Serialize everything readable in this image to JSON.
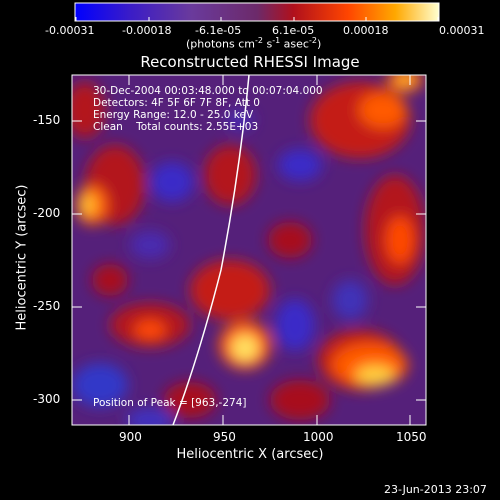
{
  "colorbar": {
    "tick_labels": [
      "-0.00031",
      "-0.00018",
      "-6.1e-05",
      "6.1e-05",
      "0.00018",
      "0.00031"
    ],
    "units_label": "(photons cm",
    "units_exp1": "-2",
    "units_mid": " s",
    "units_exp2": "-1",
    "units_end": " asec",
    "units_exp3": "-2",
    "units_close": ")"
  },
  "title": "Reconstructed RHESSI Image",
  "info": {
    "time": "30-Dec-2004 00:03:48.000 to 00:07:04.000",
    "detectors": "Detectors: 4F 5F 6F 7F 8F, Att 0",
    "energy": "Energy Range: 12.0 - 25.0 keV",
    "clean": "Clean    Total counts: 2.55E+03",
    "peak": "Position of Peak = [963,-274]"
  },
  "axes": {
    "xlabel": "Heliocentric X (arcsec)",
    "ylabel": "Heliocentric Y (arcsec)",
    "xticks": [
      "900",
      "950",
      "1000",
      "1050"
    ],
    "yticks": [
      "-150",
      "-200",
      "-250",
      "-300"
    ]
  },
  "timestamp": "23-Jun-2013 23:07",
  "colors": {
    "background": "#000000",
    "text": "#ffffff"
  }
}
